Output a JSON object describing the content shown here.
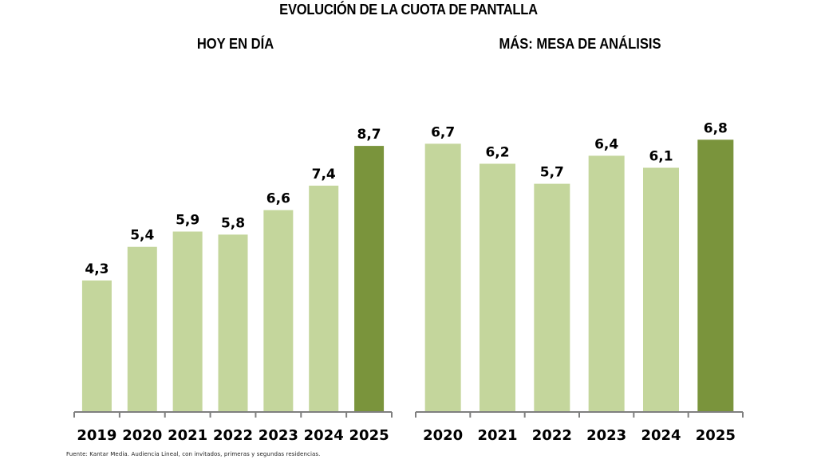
{
  "title": "EVOLUCIÓN DE LA CUOTA DE PANTALLA",
  "source": "Fuente: Kantar Media. Audiencia Lineal, con invitados, primeras y segundas residencias.",
  "colors": {
    "regular_bar": "#c4d69c",
    "highlight_bar": "#7a943c",
    "axis": "#7f7f7f"
  },
  "chart_data": [
    {
      "type": "bar",
      "title": "HOY EN DÍA",
      "xlabel": "",
      "ylabel": "",
      "categories": [
        "2019",
        "2020",
        "2021",
        "2022",
        "2023",
        "2024",
        "2025"
      ],
      "values": [
        4.3,
        5.4,
        5.9,
        5.8,
        6.6,
        7.4,
        8.7
      ],
      "value_labels": [
        "4,3",
        "5,4",
        "5,9",
        "5,8",
        "6,6",
        "7,4",
        "8,7"
      ],
      "highlight_index": 6,
      "ylim": [
        0,
        10.5
      ],
      "grid": false
    },
    {
      "type": "bar",
      "title": "MÁS: MESA DE ANÁLISIS",
      "xlabel": "",
      "ylabel": "",
      "categories": [
        "2020",
        "2021",
        "2022",
        "2023",
        "2024",
        "2025"
      ],
      "values": [
        6.7,
        6.2,
        5.7,
        6.4,
        6.1,
        6.8
      ],
      "value_labels": [
        "6,7",
        "6,2",
        "5,7",
        "6,4",
        "6,1",
        "6,8"
      ],
      "highlight_index": 5,
      "ylim": [
        0,
        8.2
      ],
      "grid": false
    }
  ]
}
